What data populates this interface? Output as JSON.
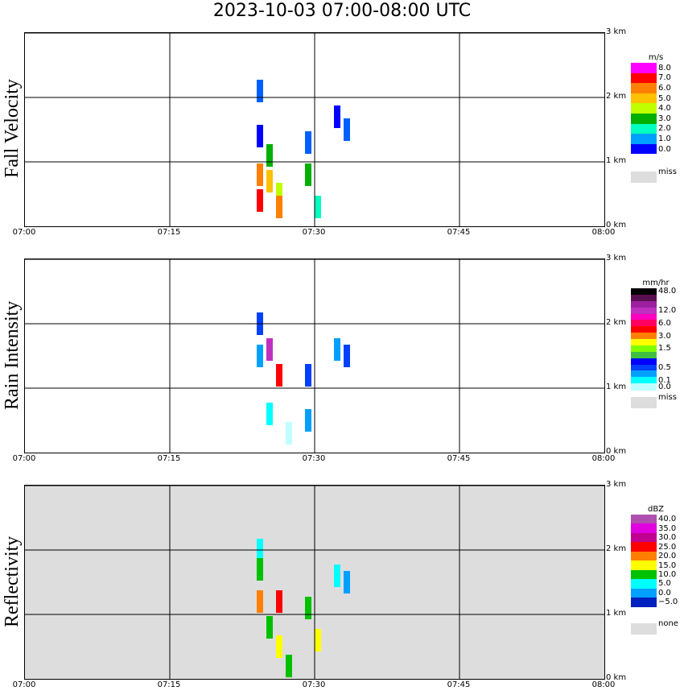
{
  "title": "2023-10-03   07:00-08:00 UTC",
  "chart_data": [
    {
      "type": "heatmap",
      "name": "Fall Velocity",
      "x_ticks": [
        "07:00",
        "07:15",
        "07:30",
        "07:45",
        "08:00"
      ],
      "y_ticks": [
        "3 km",
        "2 km",
        "1 km",
        "0 km"
      ],
      "xlim": [
        "07:00",
        "08:00"
      ],
      "ylim_km": [
        0,
        3.2
      ],
      "grid": true,
      "background": "#ffffff",
      "legend": {
        "unit": "m/s",
        "levels": [
          {
            "label": "8.0",
            "color": "#ff00ff"
          },
          {
            "label": "7.0",
            "color": "#ff0000"
          },
          {
            "label": "6.0",
            "color": "#ff7f00"
          },
          {
            "label": "5.0",
            "color": "#ffc000"
          },
          {
            "label": "4.0",
            "color": "#bfff00"
          },
          {
            "label": "3.0",
            "color": "#00b000"
          },
          {
            "label": "2.0",
            "color": "#00ffc0"
          },
          {
            "label": "1.0",
            "color": "#00a0ff"
          },
          {
            "label": "0.0",
            "color": "#0000ff"
          },
          {
            "label": "",
            "color": "#ffffff"
          }
        ],
        "miss_label": "miss",
        "miss_color": "#dddddd"
      },
      "echo_cells": [
        {
          "t": "07:24",
          "h": 2.1,
          "color": "#0060ff"
        },
        {
          "t": "07:24",
          "h": 1.4,
          "color": "#0000ff"
        },
        {
          "t": "07:24",
          "h": 0.8,
          "color": "#ff7f00"
        },
        {
          "t": "07:24",
          "h": 0.4,
          "color": "#ff0000"
        },
        {
          "t": "07:25",
          "h": 1.1,
          "color": "#00b000"
        },
        {
          "t": "07:25",
          "h": 0.7,
          "color": "#ffc000"
        },
        {
          "t": "07:26",
          "h": 0.5,
          "color": "#bfff00"
        },
        {
          "t": "07:26",
          "h": 0.3,
          "color": "#ff7f00"
        },
        {
          "t": "07:29",
          "h": 1.3,
          "color": "#0060ff"
        },
        {
          "t": "07:29",
          "h": 0.8,
          "color": "#00b000"
        },
        {
          "t": "07:30",
          "h": 0.3,
          "color": "#00ffc0"
        },
        {
          "t": "07:32",
          "h": 1.7,
          "color": "#0000ff"
        },
        {
          "t": "07:33",
          "h": 1.5,
          "color": "#0060ff"
        }
      ]
    },
    {
      "type": "heatmap",
      "name": "Rain Intensity",
      "x_ticks": [
        "07:00",
        "07:15",
        "07:30",
        "07:45",
        "08:00"
      ],
      "y_ticks": [
        "3 km",
        "2 km",
        "1 km",
        "0 km"
      ],
      "xlim": [
        "07:00",
        "08:00"
      ],
      "ylim_km": [
        0,
        3.2
      ],
      "grid": true,
      "background": "#ffffff",
      "legend": {
        "unit": "mm/hr",
        "levels": [
          {
            "label": "48.0",
            "color": "#000000"
          },
          {
            "label": "",
            "color": "#5a1050"
          },
          {
            "label": "",
            "color": "#9a20a0"
          },
          {
            "label": "12.0",
            "color": "#c030c0"
          },
          {
            "label": "",
            "color": "#ff00c0"
          },
          {
            "label": "6.0",
            "color": "#ff0060"
          },
          {
            "label": "",
            "color": "#ff0000"
          },
          {
            "label": "3.0",
            "color": "#ff8000"
          },
          {
            "label": "",
            "color": "#ffff00"
          },
          {
            "label": "1.5",
            "color": "#80ff00"
          },
          {
            "label": "",
            "color": "#40c040"
          },
          {
            "label": "",
            "color": "#0000ff"
          },
          {
            "label": "0.5",
            "color": "#0040ff"
          },
          {
            "label": "",
            "color": "#00a0ff"
          },
          {
            "label": "0.1",
            "color": "#00ffff"
          },
          {
            "label": "0.0",
            "color": "#c0ffff"
          }
        ],
        "miss_label": "miss",
        "miss_color": "#dddddd"
      },
      "echo_cells": [
        {
          "t": "07:24",
          "h": 2.0,
          "color": "#0040ff"
        },
        {
          "t": "07:24",
          "h": 1.5,
          "color": "#00a0ff"
        },
        {
          "t": "07:25",
          "h": 1.6,
          "color": "#c030c0"
        },
        {
          "t": "07:26",
          "h": 1.2,
          "color": "#ff0000"
        },
        {
          "t": "07:25",
          "h": 0.6,
          "color": "#00ffff"
        },
        {
          "t": "07:27",
          "h": 0.3,
          "color": "#c0ffff"
        },
        {
          "t": "07:29",
          "h": 1.2,
          "color": "#0040ff"
        },
        {
          "t": "07:29",
          "h": 0.5,
          "color": "#00a0ff"
        },
        {
          "t": "07:32",
          "h": 1.6,
          "color": "#00a0ff"
        },
        {
          "t": "07:33",
          "h": 1.5,
          "color": "#0040ff"
        }
      ]
    },
    {
      "type": "heatmap",
      "name": "Reflectivity",
      "x_ticks": [
        "07:00",
        "07:15",
        "07:30",
        "07:45",
        "08:00"
      ],
      "y_ticks": [
        "3 km",
        "2 km",
        "1 km",
        "0 km"
      ],
      "xlim": [
        "07:00",
        "08:00"
      ],
      "ylim_km": [
        0,
        3.2
      ],
      "grid": true,
      "background": "#dddddd",
      "legend": {
        "unit": "dBZ",
        "levels": [
          {
            "label": "40.0",
            "color": "#b050b0"
          },
          {
            "label": "35.0",
            "color": "#e000e0"
          },
          {
            "label": "30.0",
            "color": "#c00090"
          },
          {
            "label": "25.0",
            "color": "#ff0000"
          },
          {
            "label": "20.0",
            "color": "#ff8000"
          },
          {
            "label": "15.0",
            "color": "#ffff00"
          },
          {
            "label": "10.0",
            "color": "#00c000"
          },
          {
            "label": "5.0",
            "color": "#00ffff"
          },
          {
            "label": "0.0",
            "color": "#00a0ff"
          },
          {
            "label": "−5.0",
            "color": "#0020c0"
          },
          {
            "label": "",
            "color": "#ffffff"
          }
        ],
        "miss_label": "none",
        "miss_color": "#dddddd"
      },
      "echo_cells": [
        {
          "t": "07:24",
          "h": 2.0,
          "color": "#00ffff"
        },
        {
          "t": "07:24",
          "h": 1.7,
          "color": "#00c000"
        },
        {
          "t": "07:24",
          "h": 1.2,
          "color": "#ff8000"
        },
        {
          "t": "07:25",
          "h": 0.8,
          "color": "#00c000"
        },
        {
          "t": "07:26",
          "h": 1.2,
          "color": "#ff0000"
        },
        {
          "t": "07:26",
          "h": 0.5,
          "color": "#ffff00"
        },
        {
          "t": "07:27",
          "h": 0.2,
          "color": "#00c000"
        },
        {
          "t": "07:29",
          "h": 1.1,
          "color": "#00c000"
        },
        {
          "t": "07:30",
          "h": 0.6,
          "color": "#ffff00"
        },
        {
          "t": "07:32",
          "h": 1.6,
          "color": "#00ffff"
        },
        {
          "t": "07:33",
          "h": 1.5,
          "color": "#00a0ff"
        }
      ]
    }
  ]
}
